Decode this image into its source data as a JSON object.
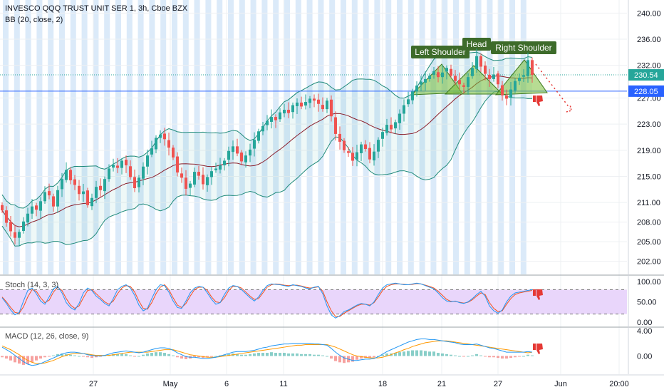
{
  "header": {
    "symbol": "INVESCO QQQ TRUST UNIT SER 1, 3h, Cboe BZX",
    "indicator_bb": "BB (20, close, 2)"
  },
  "colors": {
    "up": "#26a69a",
    "down": "#ef5350",
    "bb_band": "#1f8a7a",
    "bb_basis": "#8b1e2b",
    "bb_fill": "#2aa89a",
    "session_stripe": "#cfe3f7",
    "level_line": "#2962ff",
    "price_line": "#26a69a",
    "pattern_fill": "#7bbf3a",
    "pattern_label_bg": "#3d6b2a",
    "stoch_bg": "#e9d6fb",
    "stoch_k": "#2196f3",
    "stoch_d": "#f4511e",
    "macd_line": "#2196f3",
    "signal_line": "#ff9800",
    "thumbs_down": "#e53935"
  },
  "icons": [
    "thumbs-down-icon"
  ],
  "chart_data": [
    {
      "type": "candlestick",
      "title": "INVESCO QQQ TRUST UNIT SER 1, 3h, Cboe BZX",
      "indicator": "BB (20, close, 2)",
      "ylim": [
        200,
        242
      ],
      "y_ticks": [
        "240.00",
        "236.00",
        "232.00",
        "227.00",
        "223.00",
        "219.00",
        "215.00",
        "211.00",
        "208.00",
        "205.00",
        "202.00"
      ],
      "x_ticks": [
        "27",
        "May",
        "6",
        "11",
        "18",
        "21",
        "27",
        "Jun",
        "20:00"
      ],
      "price_label": "230.54",
      "level_label": "228.05",
      "level_value": 228.05,
      "last_value": 230.54,
      "close": [
        209.8,
        207.9,
        206.6,
        205.6,
        206.5,
        208.1,
        209.3,
        210.4,
        209.9,
        211.2,
        212.6,
        212.1,
        210.4,
        212.9,
        214.6,
        216.0,
        214.4,
        213.7,
        212.3,
        212.7,
        210.6,
        211.7,
        213.4,
        212.9,
        214.6,
        216.2,
        216.8,
        216.3,
        217.4,
        216.7,
        214.9,
        213.2,
        214.8,
        216.5,
        218.2,
        219.3,
        220.9,
        221.4,
        220.7,
        219.4,
        217.9,
        215.6,
        214.8,
        213.1,
        213.9,
        215.7,
        215.1,
        213.8,
        214.9,
        215.8,
        216.2,
        216.7,
        217.4,
        218.9,
        219.6,
        218.5,
        217.3,
        218.2,
        219.1,
        220.6,
        221.9,
        222.7,
        223.5,
        224.1,
        223.6,
        224.8,
        225.2,
        224.7,
        225.9,
        226.3,
        225.7,
        226.4,
        226.9,
        226.6,
        226.1,
        225.3,
        226.6,
        224.2,
        221.5,
        220.3,
        219.0,
        218.6,
        217.4,
        218.7,
        219.9,
        219.2,
        217.6,
        218.8,
        220.6,
        221.8,
        222.9,
        222.2,
        223.3,
        224.6,
        225.9,
        226.8,
        228.0,
        228.9,
        229.5,
        229.9,
        230.4,
        231.1,
        230.2,
        230.9,
        231.6,
        230.4,
        229.6,
        229.1,
        228.7,
        230.2,
        231.6,
        233.4,
        231.8,
        230.7,
        229.9,
        230.6,
        229.1,
        227.4,
        226.9,
        228.3,
        229.6,
        230.1,
        230.5,
        232.8,
        230.54
      ],
      "candle_count": 125,
      "pattern_labels": [
        "Left Shoulder",
        "Head",
        "Right Shoulder"
      ]
    },
    {
      "type": "line",
      "title": "Stoch (14, 3, 3)",
      "ylim": [
        0,
        100
      ],
      "y_ticks": [
        "100.00",
        "50.00",
        "0.00"
      ],
      "band": [
        20,
        80
      ],
      "series": [
        {
          "name": "%K",
          "values": [
            60,
            46,
            30,
            18,
            24,
            52,
            78,
            84,
            70,
            52,
            44,
            62,
            82,
            88,
            72,
            48,
            36,
            30,
            46,
            72,
            84,
            78,
            64,
            56,
            46,
            40,
            58,
            80,
            88,
            92,
            84,
            66,
            42,
            28,
            34,
            58,
            80,
            92,
            90,
            74,
            52,
            36,
            34,
            52,
            72,
            84,
            88,
            86,
            72,
            56,
            44,
            48,
            68,
            84,
            90,
            88,
            80,
            70,
            60,
            52,
            62,
            78,
            90,
            94,
            93,
            92,
            90,
            88,
            92,
            90,
            88,
            84,
            82,
            86,
            88,
            70,
            40,
            18,
            10,
            16,
            26,
            30,
            36,
            42,
            46,
            44,
            40,
            50,
            68,
            84,
            92,
            94,
            96,
            94,
            92,
            92,
            94,
            96,
            94,
            90,
            86,
            82,
            72,
            60,
            52,
            50,
            52,
            48,
            46,
            50,
            58,
            68,
            76,
            64,
            40,
            28,
            22,
            30,
            50,
            64,
            72,
            74,
            76,
            78,
            80
          ]
        },
        {
          "name": "%D",
          "values": [
            62,
            50,
            36,
            24,
            22,
            38,
            62,
            80,
            76,
            60,
            48,
            54,
            74,
            86,
            78,
            58,
            42,
            34,
            40,
            60,
            78,
            80,
            70,
            60,
            50,
            44,
            52,
            70,
            84,
            90,
            88,
            74,
            52,
            34,
            32,
            48,
            70,
            86,
            92,
            80,
            60,
            42,
            36,
            46,
            64,
            80,
            86,
            86,
            78,
            62,
            50,
            48,
            60,
            78,
            88,
            88,
            84,
            74,
            64,
            56,
            58,
            72,
            86,
            92,
            94,
            93,
            91,
            90,
            91,
            91,
            89,
            86,
            84,
            85,
            87,
            76,
            50,
            28,
            14,
            14,
            22,
            28,
            34,
            40,
            44,
            44,
            42,
            48,
            62,
            78,
            88,
            92,
            94,
            94,
            93,
            92,
            93,
            95,
            94,
            91,
            88,
            84,
            76,
            66,
            56,
            51,
            51,
            49,
            47,
            49,
            55,
            64,
            72,
            68,
            48,
            34,
            26,
            28,
            44,
            58,
            68,
            72,
            74,
            76,
            78
          ]
        }
      ]
    },
    {
      "type": "bar+line",
      "title": "MACD (12, 26, close, 9)",
      "ylim": [
        -2.2,
        4.0
      ],
      "y_ticks": [
        "4.00",
        "0.00"
      ],
      "series": [
        {
          "name": "histogram",
          "values": [
            -0.2,
            -0.4,
            -0.7,
            -1.0,
            -1.2,
            -1.4,
            -1.3,
            -1.0,
            -0.7,
            -0.4,
            -0.2,
            -0.1,
            0.1,
            0.3,
            0.4,
            0.3,
            0.2,
            0.1,
            0.0,
            -0.1,
            -0.2,
            -0.3,
            -0.2,
            -0.1,
            0.1,
            0.2,
            0.3,
            0.3,
            0.4,
            0.3,
            0.1,
            -0.1,
            0.0,
            0.2,
            0.4,
            0.5,
            0.6,
            0.6,
            0.5,
            0.3,
            0.1,
            -0.2,
            -0.4,
            -0.5,
            -0.4,
            -0.2,
            -0.2,
            -0.3,
            -0.2,
            -0.1,
            0.0,
            0.1,
            0.2,
            0.3,
            0.4,
            0.3,
            0.2,
            0.2,
            0.3,
            0.4,
            0.5,
            0.5,
            0.5,
            0.6,
            0.5,
            0.5,
            0.5,
            0.4,
            0.4,
            0.4,
            0.3,
            0.3,
            0.3,
            0.2,
            0.2,
            0.1,
            0.0,
            -0.4,
            -0.8,
            -1.0,
            -1.1,
            -1.0,
            -0.9,
            -0.6,
            -0.4,
            -0.3,
            -0.3,
            -0.2,
            0.0,
            0.2,
            0.4,
            0.4,
            0.5,
            0.6,
            0.7,
            0.8,
            0.9,
            0.9,
            0.9,
            0.8,
            0.7,
            0.7,
            0.5,
            0.4,
            0.3,
            0.2,
            0.1,
            0.0,
            -0.1,
            0.0,
            0.1,
            0.3,
            0.1,
            -0.1,
            -0.2,
            -0.2,
            -0.3,
            -0.4,
            -0.4,
            -0.3,
            -0.2,
            -0.1,
            0.0,
            0.2,
            0.1
          ]
        },
        {
          "name": "MACD",
          "values": [
            1.4,
            1.0,
            0.6,
            0.1,
            -0.4,
            -0.9,
            -1.3,
            -1.5,
            -1.4,
            -1.2,
            -0.9,
            -0.6,
            -0.3,
            0.0,
            0.3,
            0.5,
            0.6,
            0.6,
            0.5,
            0.4,
            0.2,
            0.1,
            0.0,
            0.0,
            0.1,
            0.3,
            0.5,
            0.6,
            0.7,
            0.8,
            0.7,
            0.6,
            0.5,
            0.6,
            0.8,
            1.0,
            1.2,
            1.3,
            1.3,
            1.2,
            0.9,
            0.5,
            0.2,
            -0.1,
            -0.2,
            -0.2,
            -0.3,
            -0.4,
            -0.4,
            -0.3,
            -0.2,
            0.0,
            0.2,
            0.4,
            0.6,
            0.7,
            0.7,
            0.7,
            0.8,
            0.9,
            1.1,
            1.3,
            1.4,
            1.6,
            1.7,
            1.8,
            1.9,
            1.9,
            2.0,
            2.0,
            2.0,
            2.0,
            2.0,
            1.9,
            1.9,
            1.8,
            1.7,
            1.2,
            0.6,
            0.1,
            -0.3,
            -0.5,
            -0.7,
            -0.7,
            -0.6,
            -0.5,
            -0.5,
            -0.4,
            -0.1,
            0.3,
            0.7,
            1.0,
            1.3,
            1.6,
            1.9,
            2.2,
            2.4,
            2.6,
            2.7,
            2.7,
            2.6,
            2.6,
            2.5,
            2.4,
            2.3,
            2.2,
            2.1,
            1.9,
            1.8,
            1.8,
            1.8,
            1.9,
            1.7,
            1.5,
            1.3,
            1.2,
            1.0,
            0.8,
            0.6,
            0.6,
            0.6,
            0.6,
            0.6,
            0.7,
            0.6
          ]
        },
        {
          "name": "Signal",
          "values": [
            1.6,
            1.3,
            1.0,
            0.6,
            0.2,
            -0.3,
            -0.7,
            -1.0,
            -1.2,
            -1.2,
            -1.1,
            -0.9,
            -0.7,
            -0.4,
            -0.1,
            0.1,
            0.3,
            0.4,
            0.4,
            0.4,
            0.3,
            0.2,
            0.1,
            0.1,
            0.1,
            0.1,
            0.2,
            0.3,
            0.4,
            0.5,
            0.6,
            0.6,
            0.6,
            0.6,
            0.6,
            0.7,
            0.8,
            0.9,
            1.0,
            1.0,
            1.0,
            0.8,
            0.6,
            0.4,
            0.2,
            0.1,
            0.0,
            -0.1,
            -0.2,
            -0.2,
            -0.2,
            -0.1,
            0.0,
            0.1,
            0.2,
            0.3,
            0.4,
            0.5,
            0.6,
            0.7,
            0.8,
            0.9,
            1.0,
            1.1,
            1.2,
            1.3,
            1.4,
            1.5,
            1.6,
            1.7,
            1.7,
            1.8,
            1.8,
            1.8,
            1.8,
            1.8,
            1.8,
            1.6,
            1.4,
            1.1,
            0.8,
            0.5,
            0.2,
            0.0,
            -0.1,
            -0.2,
            -0.3,
            -0.3,
            -0.3,
            -0.2,
            0.0,
            0.2,
            0.5,
            0.7,
            1.0,
            1.2,
            1.5,
            1.7,
            1.9,
            2.1,
            2.2,
            2.3,
            2.4,
            2.4,
            2.4,
            2.3,
            2.2,
            2.1,
            2.0,
            1.9,
            1.8,
            1.7,
            1.6,
            1.5,
            1.4,
            1.3,
            1.2,
            1.1,
            1.0,
            0.9,
            0.8,
            0.7,
            0.6,
            0.5,
            0.6
          ]
        }
      ]
    }
  ]
}
